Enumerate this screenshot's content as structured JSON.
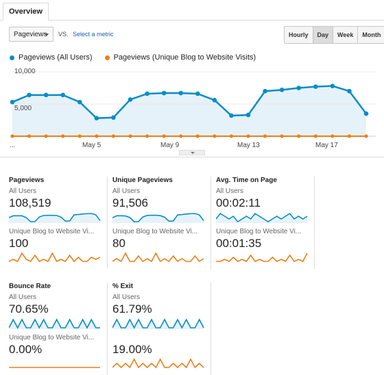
{
  "tabs": {
    "overview": "Overview"
  },
  "controls": {
    "metric_selector": "Pageviews",
    "vs": "VS.",
    "select_metric": "Select a metric",
    "granularity": [
      "Hourly",
      "Day",
      "Week",
      "Month"
    ],
    "active_granularity": "Day"
  },
  "colors": {
    "blue": "#058dc7",
    "orange": "#ed7e17",
    "blue_fill": "#e6f2f9"
  },
  "chart_data": {
    "type": "line",
    "ylim": [
      0,
      10000
    ],
    "y_ticks": [
      "10,000",
      "5,000"
    ],
    "x_ticks": [
      "...",
      "May 5",
      "May 9",
      "May 13",
      "May 17"
    ],
    "series": [
      {
        "name": "Pageviews (All Users)",
        "color": "#058dc7",
        "values": [
          5300,
          6400,
          6400,
          6400,
          5300,
          2800,
          2900,
          5700,
          6600,
          6700,
          6700,
          6600,
          5600,
          3200,
          3300,
          7000,
          7200,
          7500,
          7700,
          7800,
          7000,
          3500
        ]
      },
      {
        "name": "Pageviews (Unique Blog to Website Visits)",
        "color": "#ed7e17",
        "values": [
          4,
          5,
          4,
          6,
          5,
          3,
          4,
          5,
          6,
          4,
          5,
          3,
          4,
          5,
          4,
          6,
          5,
          4,
          5,
          6,
          4,
          5
        ]
      }
    ]
  },
  "cards": [
    {
      "title": "Pageviews",
      "sub1": "All Users",
      "val1": "108,519",
      "sub2": "Unique Blog to Website Vi...",
      "val2": "100",
      "spark_blue": [
        5300,
        6400,
        6400,
        6400,
        5300,
        2800,
        2900,
        5700,
        6600,
        6700,
        6700,
        6600,
        5600,
        3200,
        3300,
        7000,
        7200,
        7500,
        7700,
        7800,
        7000,
        3500
      ],
      "spark_orange": [
        1,
        2,
        1,
        5,
        2,
        1,
        4,
        1,
        2,
        1,
        5,
        1,
        2,
        1,
        4,
        1,
        3,
        1,
        1,
        3,
        2,
        3
      ]
    },
    {
      "title": "Unique Pageviews",
      "sub1": "All Users",
      "val1": "91,506",
      "sub2": "Unique Blog to Website Vi...",
      "val2": "80",
      "spark_blue": [
        5000,
        6100,
        6100,
        6000,
        5100,
        2700,
        2800,
        5400,
        6300,
        6400,
        6400,
        6200,
        5300,
        3000,
        3100,
        6600,
        6800,
        7100,
        7300,
        7400,
        6600,
        3300
      ],
      "spark_orange": [
        1,
        2,
        1,
        4,
        1,
        1,
        3,
        1,
        2,
        1,
        4,
        1,
        2,
        1,
        3,
        1,
        2,
        1,
        1,
        3,
        1,
        2
      ]
    },
    {
      "title": "Avg. Time on Page",
      "sub1": "All Users",
      "val1": "00:02:11",
      "sub2": "Unique Blog to Website Vi...",
      "val2": "00:01:35",
      "spark_blue": [
        6,
        6.2,
        6.1,
        6,
        6.1,
        5.9,
        6,
        6.1,
        6,
        6.2,
        6.1,
        6,
        5.9,
        6,
        6.1,
        6,
        6.1,
        6.2,
        6,
        6.1,
        6,
        6.1
      ],
      "spark_orange": [
        1,
        1,
        2,
        1,
        3,
        1,
        2,
        1,
        4,
        1,
        2,
        1,
        1,
        3,
        1,
        2,
        1,
        4,
        1,
        2,
        1,
        5
      ]
    },
    {
      "title": "Bounce Rate",
      "sub1": "All Users",
      "val1": "70.65%",
      "sub2": "Unique Blog to Website Vi...",
      "val2": "0.00%",
      "spark_blue": [
        6,
        6.1,
        6,
        6.1,
        6,
        6,
        6.1,
        6,
        6.1,
        6,
        6,
        6.1,
        6,
        6,
        6.1,
        6,
        6,
        6.1,
        6,
        6.1,
        6,
        6
      ],
      "spark_orange": [
        0,
        0,
        0,
        0,
        0,
        0,
        0,
        0,
        0,
        0,
        0,
        0,
        0,
        0,
        0,
        0,
        0,
        0,
        0,
        0,
        0,
        0
      ]
    },
    {
      "title": "% Exit",
      "sub1": "All Users",
      "val1": "61.79%",
      "sub2": "",
      "val2": "19.00%",
      "spark_blue": [
        6,
        6.1,
        6,
        6,
        6.1,
        6,
        6.1,
        6,
        6,
        6.1,
        6,
        6,
        6.1,
        6,
        6,
        6.1,
        6,
        6.1,
        6,
        6,
        6.1,
        6
      ],
      "spark_orange": [
        1,
        2,
        1,
        2,
        1,
        3,
        1,
        2,
        1,
        2,
        1,
        3,
        1,
        1,
        2,
        1,
        2,
        1,
        3,
        1,
        2,
        1
      ]
    }
  ]
}
